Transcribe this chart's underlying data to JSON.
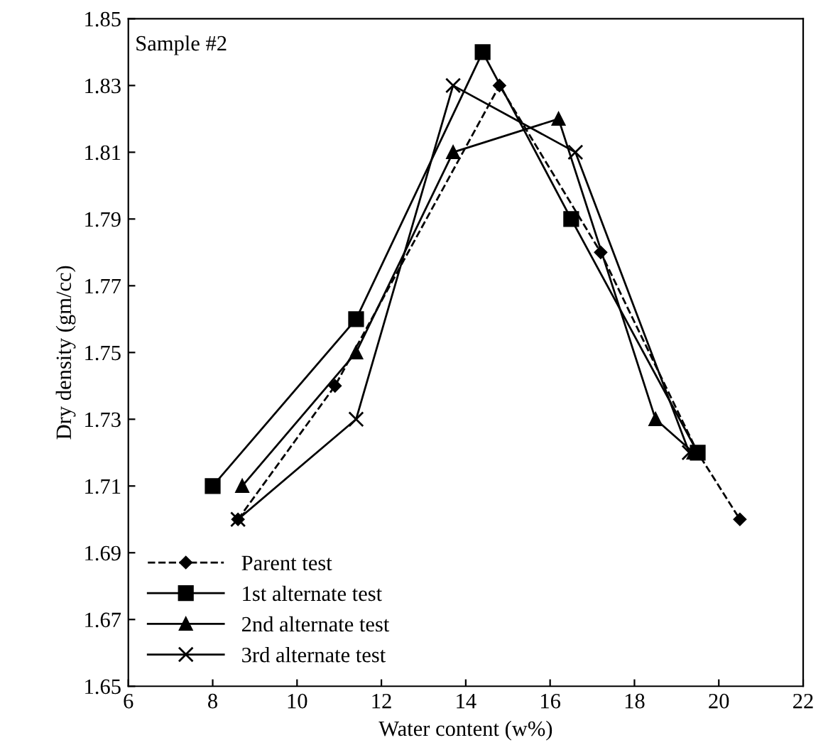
{
  "chart_data": {
    "type": "line",
    "xlabel": "Water content (w%)",
    "ylabel": "Dry density (gm/cc)",
    "annotations": [
      "Sample #2"
    ],
    "xlim": [
      6,
      22
    ],
    "xticks": [
      6,
      8,
      10,
      12,
      14,
      16,
      18,
      20,
      22
    ],
    "ylim": [
      1.65,
      1.85
    ],
    "yticks": [
      1.65,
      1.67,
      1.69,
      1.71,
      1.73,
      1.75,
      1.77,
      1.79,
      1.81,
      1.83,
      1.85
    ],
    "grid": false,
    "legend": "bottom left",
    "series": [
      {
        "name": "Parent test",
        "color": "#000000",
        "marker": "diamond",
        "line_style": "dashed",
        "x": [
          8.6,
          10.9,
          14.8,
          17.2,
          19.5,
          20.5
        ],
        "values": [
          1.7,
          1.74,
          1.83,
          1.78,
          1.72,
          1.7
        ]
      },
      {
        "name": "1st alternate test",
        "color": "#000000",
        "marker": "square",
        "line_style": "solid",
        "x": [
          8.0,
          11.4,
          14.4,
          16.5,
          19.5
        ],
        "values": [
          1.71,
          1.76,
          1.84,
          1.79,
          1.72
        ]
      },
      {
        "name": "2nd alternate test",
        "color": "#000000",
        "marker": "triangle",
        "line_style": "solid",
        "x": [
          8.7,
          11.4,
          13.7,
          16.2,
          18.5,
          19.4
        ],
        "values": [
          1.71,
          1.75,
          1.81,
          1.82,
          1.73,
          1.72
        ]
      },
      {
        "name": "3rd alternate test",
        "color": "#000000",
        "marker": "cross",
        "line_style": "solid",
        "x": [
          8.6,
          11.4,
          13.7,
          16.6,
          19.3
        ],
        "values": [
          1.7,
          1.73,
          1.83,
          1.81,
          1.72
        ]
      }
    ]
  }
}
